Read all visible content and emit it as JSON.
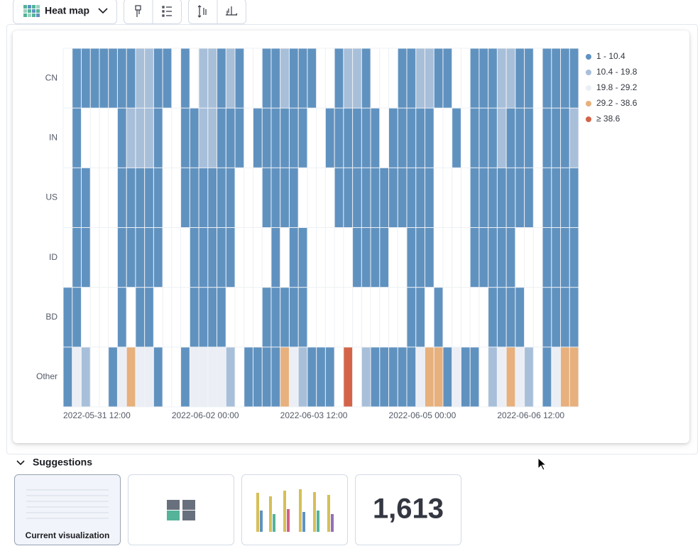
{
  "toolbar": {
    "chart_type": "Heat map"
  },
  "suggestions": {
    "title": "Suggestions",
    "items": [
      "Current visualization",
      "1,613"
    ]
  },
  "chart_data": {
    "type": "heatmap",
    "y_categories": [
      "CN",
      "IN",
      "US",
      "ID",
      "BD",
      "Other"
    ],
    "x": [
      "2022-05-31 12:00",
      null,
      null,
      null,
      null,
      null,
      null,
      null,
      null,
      null,
      null,
      null,
      "2022-06-02 00:00",
      null,
      null,
      null,
      null,
      null,
      null,
      null,
      null,
      null,
      null,
      null,
      "2022-06-03 12:00",
      null,
      null,
      null,
      null,
      null,
      null,
      null,
      null,
      null,
      null,
      null,
      "2022-06-05 00:00",
      null,
      null,
      null,
      null,
      null,
      null,
      null,
      null,
      null,
      null,
      null,
      "2022-06-06 12:00",
      null,
      null,
      null,
      null,
      null,
      null,
      null,
      null
    ],
    "values": [
      [
        null,
        5,
        5,
        5,
        5,
        5,
        5,
        5,
        15,
        15,
        5,
        5,
        null,
        5,
        null,
        15,
        15,
        5,
        15,
        5,
        null,
        null,
        5,
        5,
        15,
        5,
        5,
        5,
        null,
        null,
        5,
        15,
        15,
        5,
        null,
        null,
        null,
        5,
        5,
        15,
        15,
        5,
        5,
        null,
        null,
        5,
        5,
        5,
        15,
        15,
        5,
        5,
        null,
        5,
        5,
        5,
        5
      ],
      [
        null,
        5,
        null,
        null,
        null,
        null,
        5,
        15,
        15,
        15,
        5,
        null,
        null,
        5,
        5,
        15,
        15,
        5,
        5,
        5,
        null,
        5,
        5,
        5,
        5,
        5,
        5,
        null,
        null,
        5,
        5,
        5,
        5,
        5,
        5,
        null,
        5,
        5,
        5,
        5,
        5,
        null,
        null,
        5,
        null,
        5,
        5,
        5,
        15,
        5,
        5,
        5,
        null,
        5,
        5,
        5,
        15
      ],
      [
        null,
        5,
        5,
        null,
        null,
        null,
        5,
        5,
        5,
        5,
        5,
        null,
        null,
        5,
        5,
        5,
        5,
        5,
        5,
        null,
        null,
        null,
        5,
        5,
        5,
        5,
        null,
        null,
        null,
        null,
        5,
        5,
        5,
        5,
        5,
        5,
        5,
        5,
        5,
        5,
        5,
        null,
        null,
        null,
        null,
        5,
        5,
        5,
        5,
        5,
        5,
        5,
        null,
        5,
        5,
        5,
        5
      ],
      [
        null,
        5,
        5,
        null,
        null,
        null,
        5,
        5,
        5,
        5,
        5,
        null,
        null,
        null,
        5,
        5,
        5,
        5,
        5,
        null,
        null,
        null,
        null,
        5,
        null,
        5,
        5,
        null,
        null,
        null,
        null,
        null,
        5,
        5,
        5,
        5,
        null,
        null,
        5,
        5,
        5,
        null,
        null,
        null,
        null,
        5,
        5,
        5,
        5,
        5,
        null,
        null,
        null,
        5,
        5,
        5,
        5
      ],
      [
        5,
        5,
        null,
        null,
        null,
        null,
        5,
        null,
        5,
        5,
        null,
        null,
        null,
        null,
        5,
        5,
        5,
        5,
        null,
        null,
        null,
        null,
        5,
        5,
        5,
        5,
        5,
        null,
        null,
        null,
        null,
        null,
        null,
        null,
        null,
        null,
        null,
        null,
        5,
        5,
        null,
        5,
        null,
        null,
        null,
        null,
        null,
        5,
        5,
        5,
        5,
        null,
        null,
        5,
        5,
        5,
        5
      ],
      [
        5,
        24,
        15,
        null,
        null,
        5,
        24,
        33,
        24,
        24,
        5,
        null,
        null,
        5,
        24,
        24,
        24,
        24,
        15,
        null,
        5,
        5,
        5,
        5,
        33,
        24,
        15,
        5,
        5,
        5,
        null,
        40,
        null,
        15,
        5,
        5,
        5,
        5,
        5,
        24,
        33,
        33,
        5,
        24,
        5,
        5,
        null,
        15,
        24,
        33,
        24,
        15,
        null,
        5,
        24,
        33,
        33
      ]
    ],
    "legend": [
      {
        "label": "1 - 10.4",
        "color": "#6092c0",
        "min": 1,
        "max": 10.4
      },
      {
        "label": "10.4 - 19.8",
        "color": "#a8bfda",
        "min": 10.4,
        "max": 19.8
      },
      {
        "label": "19.8 - 29.2",
        "color": "#ebeff5",
        "min": 19.8,
        "max": 29.2
      },
      {
        "label": "29.2 - 38.6",
        "color": "#e7b07c",
        "min": 29.2,
        "max": 38.6
      },
      {
        "label": "≥ 38.6",
        "color": "#d36449",
        "min": 38.6
      }
    ]
  }
}
